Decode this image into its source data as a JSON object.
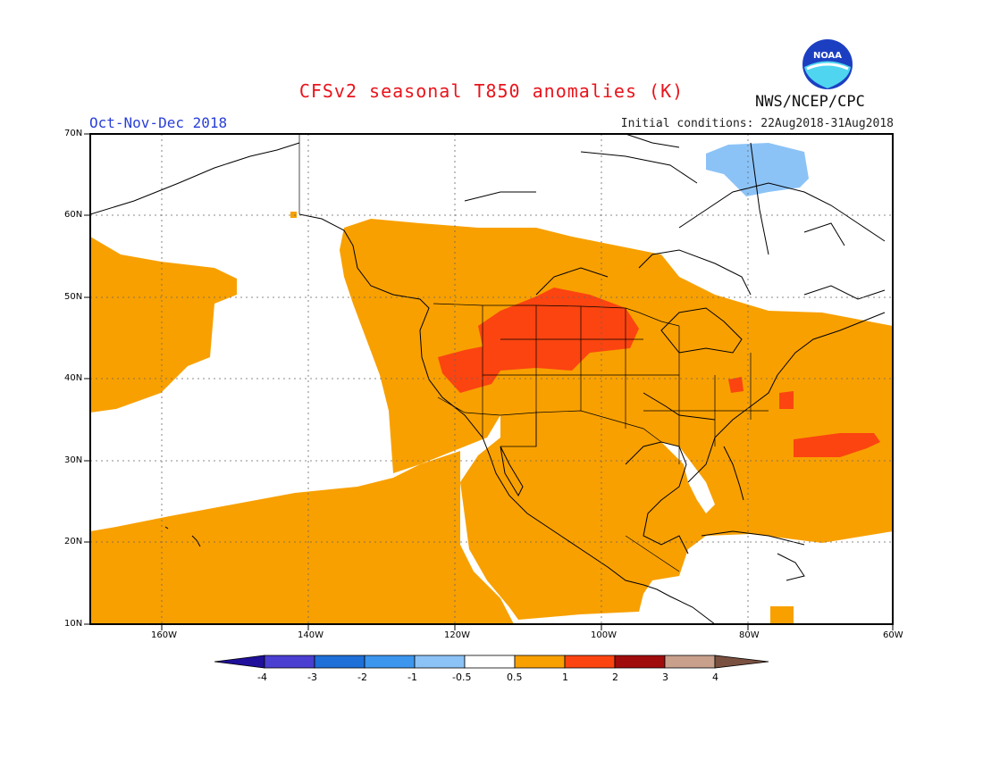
{
  "title": "CFSv2 seasonal T850 anomalies (K)",
  "period": "Oct-Nov-Dec 2018",
  "initial_conditions": "Initial conditions: 22Aug2018-31Aug2018",
  "agency": "NWS/NCEP/CPC",
  "logo_text": "NOAA",
  "lat_labels": [
    "70N",
    "60N",
    "50N",
    "40N",
    "30N",
    "20N",
    "10N"
  ],
  "lon_labels": [
    "160W",
    "140W",
    "120W",
    "100W",
    "80W",
    "60W"
  ],
  "colorbar": {
    "labels": [
      "-4",
      "-3",
      "-2",
      "-1",
      "-0.5",
      "0.5",
      "1",
      "2",
      "3",
      "4"
    ],
    "colors": [
      "#1f0f9a",
      "#4a3fd0",
      "#1e6fd8",
      "#3c96ee",
      "#8cc3f7",
      "#ffffff",
      "#f8a000",
      "#fb4410",
      "#a00c0c",
      "#c8a08c",
      "#7a5040"
    ]
  },
  "legend_colors": {
    "warm_05_1": "#f8a000",
    "warm_1_2": "#fb4410",
    "cool_05_1": "#8cc3f7"
  }
}
